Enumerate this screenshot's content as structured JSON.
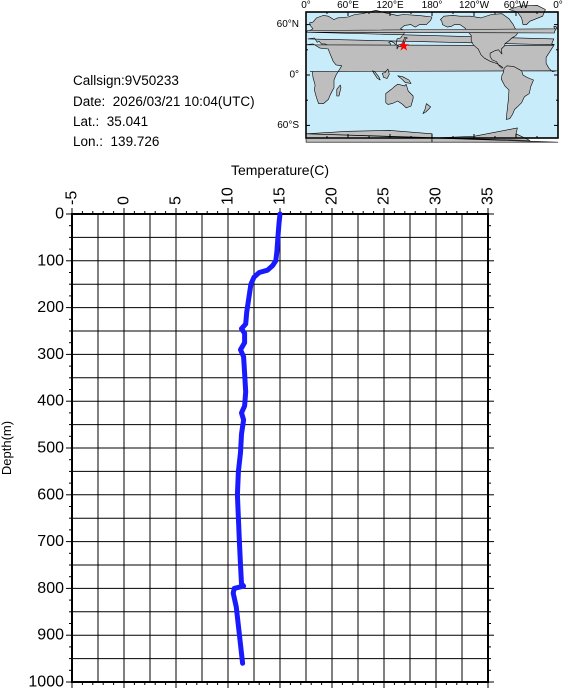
{
  "header": {
    "callsign_label": "Callsign:",
    "callsign": "9V50233",
    "date_label": "Date:",
    "date": "2026/03/21 10:04(UTC)",
    "lat_label": "Lat.:",
    "lat": "35.041",
    "lon_label": "Lon.:",
    "lon": "139.726"
  },
  "map": {
    "lon_labels": [
      "0°",
      "60°E",
      "120°E",
      "180°",
      "120°W",
      "60°W",
      "0°"
    ],
    "lat_labels": [
      "60°N",
      "0°",
      "60°S"
    ],
    "marker_lat": 35.041,
    "marker_lon": 139.726,
    "ocean_color": "#c8ecfa",
    "land_color": "#bebebe",
    "marker_color": "#ff0000",
    "marker_icon": "star-icon"
  },
  "chart_data": {
    "type": "line",
    "xlabel": "Temperature(C)",
    "ylabel": "Depth(m)",
    "xlim": [
      -5,
      35
    ],
    "ylim": [
      1000,
      0
    ],
    "x_ticks": [
      -5,
      0,
      5,
      10,
      15,
      20,
      25,
      30,
      35
    ],
    "y_ticks": [
      0,
      100,
      200,
      300,
      400,
      500,
      600,
      700,
      800,
      900,
      1000
    ],
    "grid": true,
    "line_color": "#1a1aff",
    "series": [
      {
        "points": [
          [
            15.0,
            0
          ],
          [
            14.9,
            20
          ],
          [
            14.8,
            50
          ],
          [
            14.7,
            80
          ],
          [
            14.6,
            100
          ],
          [
            14.3,
            110
          ],
          [
            13.8,
            120
          ],
          [
            13.0,
            125
          ],
          [
            12.5,
            135
          ],
          [
            12.2,
            150
          ],
          [
            12.0,
            180
          ],
          [
            11.8,
            210
          ],
          [
            11.7,
            235
          ],
          [
            11.3,
            245
          ],
          [
            11.6,
            255
          ],
          [
            11.6,
            275
          ],
          [
            11.2,
            290
          ],
          [
            11.5,
            305
          ],
          [
            11.6,
            340
          ],
          [
            11.7,
            380
          ],
          [
            11.6,
            410
          ],
          [
            11.3,
            425
          ],
          [
            11.5,
            440
          ],
          [
            11.3,
            470
          ],
          [
            11.2,
            510
          ],
          [
            11.0,
            550
          ],
          [
            10.9,
            600
          ],
          [
            11.0,
            650
          ],
          [
            11.1,
            700
          ],
          [
            11.2,
            750
          ],
          [
            11.3,
            790
          ],
          [
            11.5,
            795
          ],
          [
            10.6,
            800
          ],
          [
            10.5,
            810
          ],
          [
            10.8,
            840
          ],
          [
            11.0,
            880
          ],
          [
            11.2,
            920
          ],
          [
            11.4,
            960
          ]
        ]
      }
    ]
  }
}
